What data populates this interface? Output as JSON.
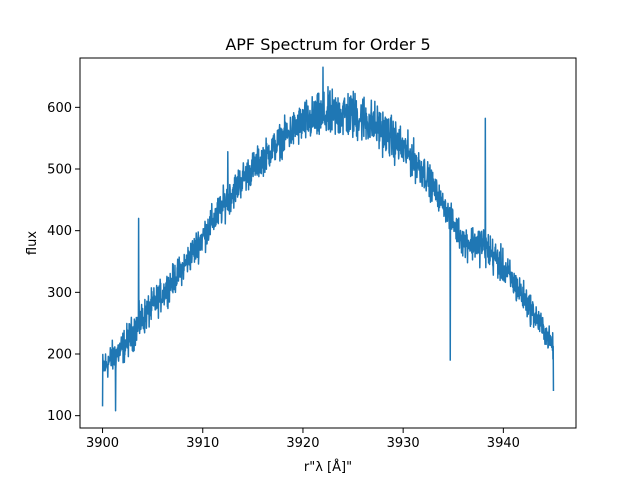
{
  "chart_data": {
    "type": "line",
    "title": "APF Spectrum for Order 5",
    "xlabel": "r\"$\\lambda$ [$\\AA$]\"",
    "xlabel_display": "r\"λ [Å]\"",
    "ylabel": "flux",
    "xlim": [
      3897.75,
      3947.25
    ],
    "ylim": [
      80,
      680
    ],
    "xticks": [
      3900,
      3910,
      3920,
      3930,
      3940
    ],
    "yticks": [
      100,
      200,
      300,
      400,
      500,
      600
    ],
    "grid": false,
    "color": "#1f77b4",
    "series": [
      {
        "x_range": [
          3900,
          3945
        ],
        "envelope": {
          "x": [
            3900,
            3902,
            3904,
            3906,
            3908,
            3910,
            3912,
            3914,
            3916,
            3918,
            3920,
            3922,
            3924,
            3926,
            3928,
            3930,
            3932,
            3934,
            3936,
            3938,
            3940,
            3942,
            3944,
            3945
          ],
          "low": [
            140,
            170,
            215,
            260,
            305,
            350,
            400,
            445,
            480,
            510,
            525,
            530,
            530,
            525,
            510,
            485,
            455,
            415,
            345,
            330,
            300,
            255,
            210,
            180
          ],
          "high": [
            215,
            250,
            300,
            335,
            375,
            430,
            480,
            525,
            555,
            590,
            625,
            640,
            650,
            640,
            615,
            580,
            540,
            470,
            420,
            425,
            380,
            330,
            270,
            240
          ]
        },
        "features": [
          {
            "x": 3900.0,
            "y": 115
          },
          {
            "x": 3901.3,
            "y": 108
          },
          {
            "x": 3903.6,
            "y": 420
          },
          {
            "x": 3912.5,
            "y": 528
          },
          {
            "x": 3922.0,
            "y": 665
          },
          {
            "x": 3934.7,
            "y": 190
          },
          {
            "x": 3938.2,
            "y": 582
          },
          {
            "x": 3945.0,
            "y": 140
          }
        ]
      }
    ]
  }
}
